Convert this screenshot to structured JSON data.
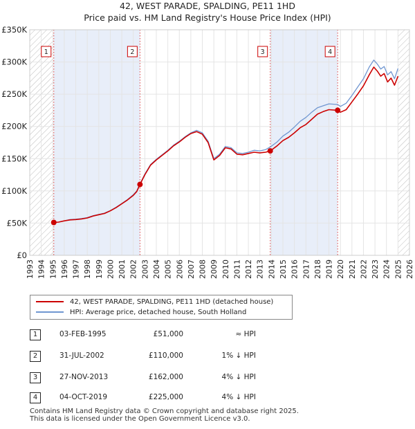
{
  "chart_data": {
    "type": "line",
    "title": "42, WEST PARADE, SPALDING, PE11 1HD",
    "subtitle": "Price paid vs. HM Land Registry's House Price Index (HPI)",
    "xlim": [
      1993,
      2026
    ],
    "ylim": [
      0,
      350000
    ],
    "x_ticks": [
      1993,
      1994,
      1995,
      1996,
      1997,
      1998,
      1999,
      2000,
      2001,
      2002,
      2003,
      2004,
      2005,
      2006,
      2007,
      2008,
      2009,
      2010,
      2011,
      2012,
      2013,
      2014,
      2015,
      2016,
      2017,
      2018,
      2019,
      2020,
      2021,
      2022,
      2023,
      2024,
      2025,
      2026
    ],
    "y_ticks": [
      {
        "value": 0,
        "label": "£0"
      },
      {
        "value": 50000,
        "label": "£50K"
      },
      {
        "value": 100000,
        "label": "£100K"
      },
      {
        "value": 150000,
        "label": "£150K"
      },
      {
        "value": 200000,
        "label": "£200K"
      },
      {
        "value": 250000,
        "label": "£250K"
      },
      {
        "value": 300000,
        "label": "£300K"
      },
      {
        "value": 350000,
        "label": "£350K"
      }
    ],
    "hatched_ranges": [
      [
        1993,
        1995.09
      ],
      [
        2025.0,
        2026
      ]
    ],
    "shaded_ranges": [
      [
        1995.09,
        2002.58
      ],
      [
        2013.9,
        2019.76
      ]
    ],
    "series": [
      {
        "name": "42, WEST PARADE, SPALDING, PE11 1HD (detached house)",
        "color": "#cc0000",
        "points": [
          [
            1995.09,
            51000
          ],
          [
            1995.5,
            51500
          ],
          [
            1996,
            53500
          ],
          [
            1996.5,
            55000
          ],
          [
            1997,
            55500
          ],
          [
            1997.5,
            56500
          ],
          [
            1998,
            58000
          ],
          [
            1998.5,
            61000
          ],
          [
            1999,
            63000
          ],
          [
            1999.5,
            65000
          ],
          [
            2000,
            69000
          ],
          [
            2000.5,
            74000
          ],
          [
            2001,
            80000
          ],
          [
            2001.5,
            86000
          ],
          [
            2002,
            93000
          ],
          [
            2002.3,
            99000
          ],
          [
            2002.58,
            110000
          ],
          [
            2003,
            125000
          ],
          [
            2003.5,
            140000
          ],
          [
            2004,
            148000
          ],
          [
            2004.5,
            155000
          ],
          [
            2005,
            162000
          ],
          [
            2005.5,
            170000
          ],
          [
            2006,
            176000
          ],
          [
            2006.5,
            183000
          ],
          [
            2007,
            189000
          ],
          [
            2007.5,
            192000
          ],
          [
            2008,
            188000
          ],
          [
            2008.5,
            175000
          ],
          [
            2009,
            148000
          ],
          [
            2009.5,
            155000
          ],
          [
            2010,
            167000
          ],
          [
            2010.5,
            165000
          ],
          [
            2011,
            157000
          ],
          [
            2011.5,
            156000
          ],
          [
            2012,
            158000
          ],
          [
            2012.5,
            160000
          ],
          [
            2013,
            159000
          ],
          [
            2013.5,
            160000
          ],
          [
            2013.9,
            162000
          ],
          [
            2014.5,
            170000
          ],
          [
            2015,
            178000
          ],
          [
            2015.5,
            183000
          ],
          [
            2016,
            190000
          ],
          [
            2016.5,
            198000
          ],
          [
            2017,
            203000
          ],
          [
            2017.5,
            211000
          ],
          [
            2018,
            219000
          ],
          [
            2018.5,
            223000
          ],
          [
            2019,
            226000
          ],
          [
            2019.76,
            225000
          ],
          [
            2020,
            222000
          ],
          [
            2020.5,
            226000
          ],
          [
            2021,
            238000
          ],
          [
            2021.5,
            250000
          ],
          [
            2022,
            263000
          ],
          [
            2022.5,
            280000
          ],
          [
            2022.9,
            292000
          ],
          [
            2023.2,
            286000
          ],
          [
            2023.5,
            278000
          ],
          [
            2023.8,
            282000
          ],
          [
            2024.1,
            269000
          ],
          [
            2024.4,
            275000
          ],
          [
            2024.7,
            264000
          ],
          [
            2025,
            278000
          ]
        ]
      },
      {
        "name": "HPI: Average price, detached house, South Holland",
        "color": "#6f96d1",
        "points": [
          [
            1995.09,
            51000
          ],
          [
            1995.5,
            51500
          ],
          [
            1996,
            53500
          ],
          [
            1996.5,
            55500
          ],
          [
            1997,
            56000
          ],
          [
            1997.5,
            57000
          ],
          [
            1998,
            58500
          ],
          [
            1998.5,
            61500
          ],
          [
            1999,
            63500
          ],
          [
            1999.5,
            65500
          ],
          [
            2000,
            69500
          ],
          [
            2000.5,
            74500
          ],
          [
            2001,
            80500
          ],
          [
            2001.5,
            86500
          ],
          [
            2002,
            94000
          ],
          [
            2002.3,
            100000
          ],
          [
            2002.58,
            111000
          ],
          [
            2003,
            126000
          ],
          [
            2003.5,
            141000
          ],
          [
            2004,
            149000
          ],
          [
            2004.5,
            156000
          ],
          [
            2005,
            163000
          ],
          [
            2005.5,
            171000
          ],
          [
            2006,
            177000
          ],
          [
            2006.5,
            184000
          ],
          [
            2007,
            190000
          ],
          [
            2007.5,
            194000
          ],
          [
            2008,
            190000
          ],
          [
            2008.5,
            177000
          ],
          [
            2009,
            150000
          ],
          [
            2009.5,
            157000
          ],
          [
            2010,
            169000
          ],
          [
            2010.5,
            167000
          ],
          [
            2011,
            159000
          ],
          [
            2011.5,
            158000
          ],
          [
            2012,
            160000
          ],
          [
            2012.5,
            163000
          ],
          [
            2013,
            162000
          ],
          [
            2013.5,
            164000
          ],
          [
            2013.9,
            168000
          ],
          [
            2014.5,
            176000
          ],
          [
            2015,
            185000
          ],
          [
            2015.5,
            191000
          ],
          [
            2016,
            199000
          ],
          [
            2016.5,
            208000
          ],
          [
            2017,
            214000
          ],
          [
            2017.5,
            222000
          ],
          [
            2018,
            229000
          ],
          [
            2018.5,
            232000
          ],
          [
            2019,
            235000
          ],
          [
            2019.76,
            234000
          ],
          [
            2020,
            231000
          ],
          [
            2020.5,
            236000
          ],
          [
            2021,
            248000
          ],
          [
            2021.5,
            261000
          ],
          [
            2022,
            274000
          ],
          [
            2022.5,
            292000
          ],
          [
            2022.9,
            303000
          ],
          [
            2023.2,
            297000
          ],
          [
            2023.5,
            289000
          ],
          [
            2023.8,
            293000
          ],
          [
            2024.1,
            280000
          ],
          [
            2024.4,
            285000
          ],
          [
            2024.7,
            274000
          ],
          [
            2025,
            290000
          ]
        ]
      }
    ],
    "sales": [
      {
        "label": "1",
        "x": 1995.09,
        "y": 51000
      },
      {
        "label": "2",
        "x": 2002.58,
        "y": 110000
      },
      {
        "label": "3",
        "x": 2013.9,
        "y": 162000
      },
      {
        "label": "4",
        "x": 2019.76,
        "y": 225000
      }
    ]
  },
  "legend": {
    "items": [
      {
        "label": "42, WEST PARADE, SPALDING, PE11 1HD (detached house)",
        "color": "#cc0000"
      },
      {
        "label": "HPI: Average price, detached house, South Holland",
        "color": "#6f96d1"
      }
    ]
  },
  "transactions": [
    {
      "num": "1",
      "date": "03-FEB-1995",
      "price": "£51,000",
      "hpi": "≈ HPI"
    },
    {
      "num": "2",
      "date": "31-JUL-2002",
      "price": "£110,000",
      "hpi": "1% ↓ HPI"
    },
    {
      "num": "3",
      "date": "27-NOV-2013",
      "price": "£162,000",
      "hpi": "4% ↓ HPI"
    },
    {
      "num": "4",
      "date": "04-OCT-2019",
      "price": "£225,000",
      "hpi": "4% ↓ HPI"
    }
  ],
  "footer": {
    "line1": "Contains HM Land Registry data © Crown copyright and database right 2025.",
    "line2": "This data is licensed under the Open Government Licence v3.0."
  }
}
